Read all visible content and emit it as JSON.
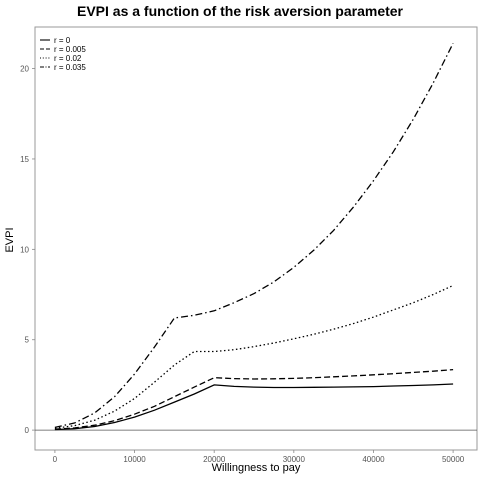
{
  "chart_data": {
    "type": "line",
    "title": "EVPI as a function of the risk aversion parameter",
    "xlabel": "Willingness to pay",
    "ylabel": "EVPI",
    "xlim": [
      -2500,
      53000
    ],
    "ylim": [
      -1.1,
      22.3
    ],
    "x_ticks": [
      0,
      10000,
      20000,
      30000,
      40000,
      50000
    ],
    "y_ticks": [
      0,
      5,
      10,
      15,
      20
    ],
    "hline": 0,
    "grid": false,
    "legend_position": "top-left",
    "x": [
      0,
      2500,
      5000,
      7500,
      10000,
      12500,
      15000,
      17500,
      20000,
      22500,
      25000,
      27500,
      30000,
      32500,
      35000,
      37500,
      40000,
      42500,
      45000,
      47500,
      50000
    ],
    "series": [
      {
        "name": "r = 0",
        "dash": "solid",
        "values": [
          0.03,
          0.08,
          0.2,
          0.42,
          0.72,
          1.1,
          1.55,
          2.0,
          2.5,
          2.42,
          2.38,
          2.36,
          2.36,
          2.37,
          2.38,
          2.39,
          2.41,
          2.44,
          2.47,
          2.5,
          2.55
        ]
      },
      {
        "name": "r = 0.005",
        "dash": "dashed",
        "values": [
          0.05,
          0.12,
          0.27,
          0.52,
          0.88,
          1.32,
          1.85,
          2.38,
          2.9,
          2.85,
          2.83,
          2.84,
          2.86,
          2.9,
          2.95,
          3.0,
          3.06,
          3.12,
          3.19,
          3.26,
          3.35
        ]
      },
      {
        "name": "r = 0.02",
        "dash": "dotted",
        "values": [
          0.1,
          0.25,
          0.55,
          1.05,
          1.75,
          2.65,
          3.6,
          4.35,
          4.35,
          4.45,
          4.62,
          4.82,
          5.05,
          5.3,
          5.58,
          5.9,
          6.25,
          6.65,
          7.05,
          7.5,
          8.0
        ]
      },
      {
        "name": "r = 0.035",
        "dash": "dashdot",
        "values": [
          0.15,
          0.4,
          0.95,
          1.85,
          3.1,
          4.6,
          6.2,
          6.35,
          6.6,
          7.05,
          7.55,
          8.2,
          9.0,
          9.95,
          11.05,
          12.35,
          13.8,
          15.4,
          17.2,
          19.2,
          21.4
        ]
      }
    ]
  }
}
